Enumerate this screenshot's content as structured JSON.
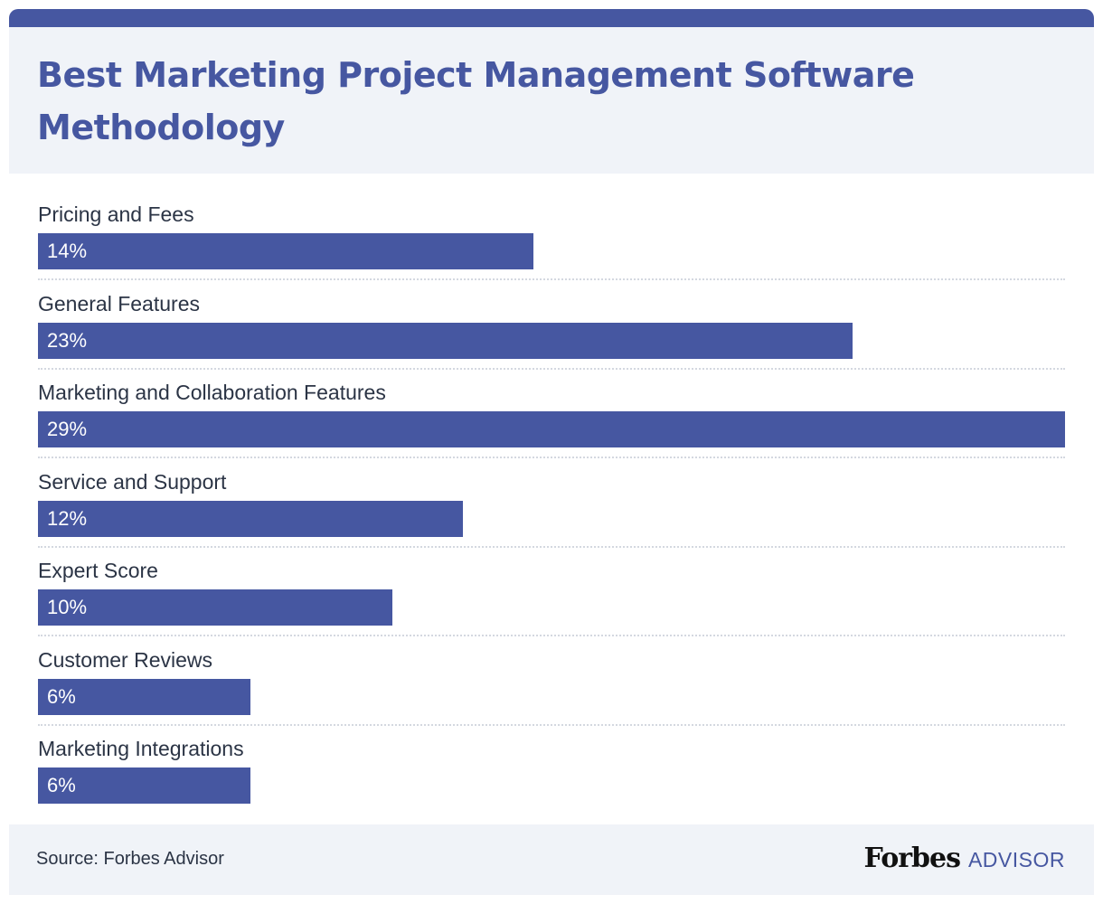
{
  "header": {
    "title": "Best Marketing Project Management Software Methodology"
  },
  "colors": {
    "accent": "#4657a1",
    "header_bg": "#f0f3f8",
    "text": "#2b3445"
  },
  "chart_data": {
    "type": "bar",
    "orientation": "horizontal",
    "title": "Best Marketing Project Management Software Methodology",
    "categories": [
      "Pricing and Fees",
      "General Features",
      "Marketing and Collaboration Features",
      "Service and Support",
      "Expert Score",
      "Customer Reviews",
      "Marketing Integrations"
    ],
    "values": [
      14,
      23,
      29,
      12,
      10,
      6,
      6
    ],
    "value_labels": [
      "14%",
      "23%",
      "29%",
      "12%",
      "10%",
      "6%",
      "6%"
    ],
    "xlim": [
      0,
      29
    ],
    "grid": false,
    "legend": "none"
  },
  "footer": {
    "source": "Source: Forbes Advisor",
    "logo_main": "Forbes",
    "logo_sub": "ADVISOR"
  }
}
